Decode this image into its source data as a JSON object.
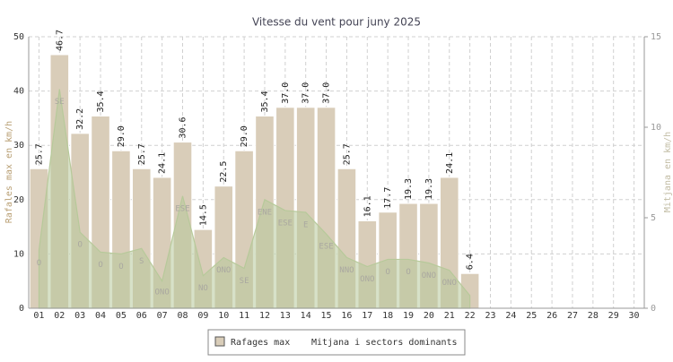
{
  "chart_data": {
    "type": "bar",
    "title": "Vitesse du vent pour juny 2025",
    "ylabel": "Rafales max en km/h",
    "y2label": "Mitjana en km/h",
    "categories": [
      "01",
      "02",
      "03",
      "04",
      "05",
      "06",
      "07",
      "08",
      "09",
      "10",
      "11",
      "12",
      "13",
      "14",
      "15",
      "16",
      "17",
      "18",
      "19",
      "20",
      "21",
      "22",
      "23",
      "24",
      "25",
      "26",
      "27",
      "28",
      "29",
      "30"
    ],
    "ylim": [
      0,
      50
    ],
    "yticks": [
      0,
      10,
      20,
      30,
      40,
      50
    ],
    "y2lim": [
      0,
      15
    ],
    "y2ticks": [
      0,
      5,
      10,
      15
    ],
    "grid": true,
    "series": [
      {
        "name": "Rafages max",
        "type": "bar",
        "color": "#d9cdb9",
        "values": [
          25.7,
          46.7,
          32.2,
          35.4,
          29.0,
          25.7,
          24.1,
          30.6,
          14.5,
          22.5,
          29.0,
          35.4,
          37.0,
          37.0,
          37.0,
          25.7,
          16.1,
          17.7,
          19.3,
          19.3,
          24.1,
          6.4,
          null,
          null,
          null,
          null,
          null,
          null,
          null,
          null
        ],
        "value_labels": [
          "25.7",
          "46.7",
          "32.2",
          "35.4",
          "29.0",
          "25.7",
          "24.1",
          "30.6",
          "14.5",
          "22.5",
          "29.0",
          "35.4",
          "37.0",
          "37.0",
          "37.0",
          "25.7",
          "16.1",
          "17.7",
          "19.3",
          "19.3",
          "24.1",
          "6.4",
          null,
          null,
          null,
          null,
          null,
          null,
          null,
          null
        ]
      },
      {
        "name": "Mitjana i sectors dominants",
        "type": "area",
        "axis": "y2",
        "color": "#b7c99a",
        "values": [
          3.2,
          12.1,
          4.2,
          3.1,
          3.0,
          3.3,
          1.5,
          6.2,
          1.8,
          2.8,
          2.2,
          6.0,
          5.4,
          5.3,
          4.1,
          2.8,
          2.3,
          2.7,
          2.7,
          2.5,
          2.1,
          0.7,
          null,
          null,
          null,
          null,
          null,
          null,
          null,
          null
        ],
        "sectors": [
          "O",
          "SE",
          "O",
          "O",
          "O",
          "S",
          "ONO",
          "ESE",
          "NO",
          "ONO",
          "SE",
          "ENE",
          "ESE",
          "E",
          "ESE",
          "NNO",
          "ONO",
          "O",
          "O",
          "ONO",
          "ONO",
          null,
          null,
          null,
          null,
          null,
          null,
          null,
          null,
          null
        ]
      }
    ]
  }
}
